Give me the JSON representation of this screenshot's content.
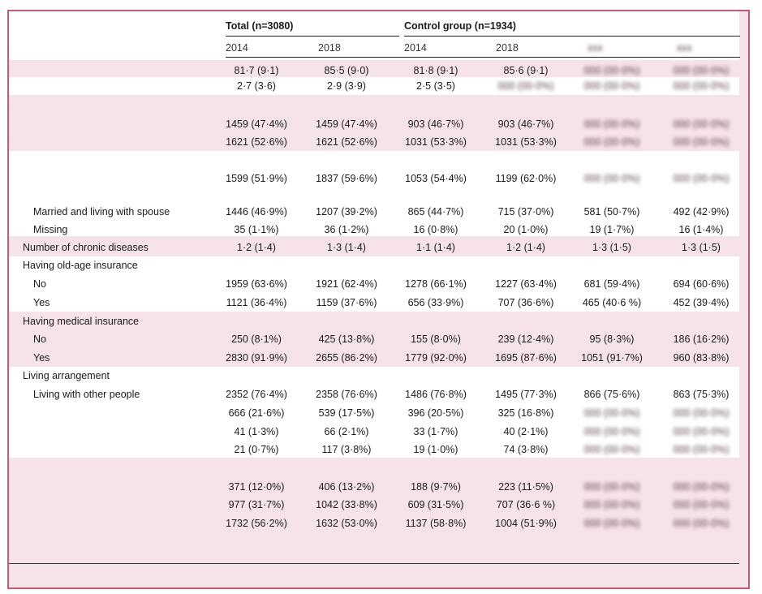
{
  "header": {
    "total": "Total (n=3080)",
    "control": "Control group (n=1934)",
    "years": [
      "2014",
      "2018",
      "2014",
      "2018"
    ]
  },
  "rows": [
    {
      "label": "",
      "indent": 0,
      "v": [
        "81·7 (9·1)",
        "85·5 (9·0)",
        "81·8 (9·1)",
        "85·6 (9·1)",
        "",
        ""
      ]
    },
    {
      "label": "",
      "indent": 0,
      "v": [
        "2·7 (3·6)",
        "2·9 (3·9)",
        "2·5 (3·5)",
        "",
        "",
        ""
      ]
    },
    {
      "label": "",
      "indent": 0,
      "v": [
        "1459 (47·4%)",
        "1459 (47·4%)",
        "903 (46·7%)",
        "903 (46·7%)",
        "",
        ""
      ]
    },
    {
      "label": "",
      "indent": 0,
      "v": [
        "1621 (52·6%)",
        "1621 (52·6%)",
        "1031 (53·3%)",
        "1031 (53·3%)",
        "",
        ""
      ]
    },
    {
      "label": "",
      "indent": 0,
      "v": [
        "1599 (51·9%)",
        "1837 (59·6%)",
        "1053 (54·4%)",
        "1199 (62·0%)",
        "",
        ""
      ]
    },
    {
      "label": "Married and living with spouse",
      "indent": 1,
      "v": [
        "1446 (46·9%)",
        "1207 (39·2%)",
        "865 (44·7%)",
        "715 (37·0%)",
        "581 (50·7%)",
        "492 (42·9%)"
      ]
    },
    {
      "label": "Missing",
      "indent": 1,
      "v": [
        "35 (1·1%)",
        "36 (1·2%)",
        "16 (0·8%)",
        "20 (1·0%)",
        "19 (1·7%)",
        "16 (1·4%)"
      ]
    },
    {
      "label": "Number of chronic diseases",
      "indent": 0,
      "v": [
        "1·2 (1·4)",
        "1·3 (1·4)",
        "1·1 (1·4)",
        "1·2 (1·4)",
        "1·3 (1·5)",
        "1·3 (1·5)"
      ]
    },
    {
      "label": "Having old-age insurance",
      "indent": 0,
      "v": [
        "",
        "",
        "",
        "",
        "",
        ""
      ]
    },
    {
      "label": "No",
      "indent": 1,
      "v": [
        "1959 (63·6%)",
        "1921 (62·4%)",
        "1278 (66·1%)",
        "1227 (63·4%)",
        "681 (59·4%)",
        "694 (60·6%)"
      ]
    },
    {
      "label": "Yes",
      "indent": 1,
      "v": [
        "1121 (36·4%)",
        "1159 (37·6%)",
        "656 (33·9%)",
        "707 (36·6%)",
        "465 (40·6 %)",
        "452 (39·4%)"
      ]
    },
    {
      "label": "Having medical insurance",
      "indent": 0,
      "v": [
        "",
        "",
        "",
        "",
        "",
        ""
      ]
    },
    {
      "label": "No",
      "indent": 1,
      "v": [
        "250 (8·1%)",
        "425 (13·8%)",
        "155 (8·0%)",
        "239 (12·4%)",
        "95 (8·3%)",
        "186 (16·2%)"
      ]
    },
    {
      "label": "Yes",
      "indent": 1,
      "v": [
        "2830 (91·9%)",
        "2655 (86·2%)",
        "1779 (92·0%)",
        "1695 (87·6%)",
        "1051 (91·7%)",
        "960 (83·8%)"
      ]
    },
    {
      "label": "Living arrangement",
      "indent": 0,
      "v": [
        "",
        "",
        "",
        "",
        "",
        ""
      ]
    },
    {
      "label": "Living with other people",
      "indent": 1,
      "v": [
        "2352 (76·4%)",
        "2358 (76·6%)",
        "1486 (76·8%)",
        "1495 (77·3%)",
        "866 (75·6%)",
        "863 (75·3%)"
      ]
    },
    {
      "label": "",
      "indent": 1,
      "v": [
        "666 (21·6%)",
        "539 (17·5%)",
        "396 (20·5%)",
        "325 (16·8%)",
        "",
        ""
      ]
    },
    {
      "label": "",
      "indent": 1,
      "v": [
        "41 (1·3%)",
        "66 (2·1%)",
        "33 (1·7%)",
        "40 (2·1%)",
        "",
        ""
      ]
    },
    {
      "label": "",
      "indent": 1,
      "v": [
        "21 (0·7%)",
        "117 (3·8%)",
        "19 (1·0%)",
        "74 (3·8%)",
        "",
        ""
      ]
    },
    {
      "label": "",
      "indent": 0,
      "v": [
        "371 (12·0%)",
        "406 (13·2%)",
        "188 (9·7%)",
        "223 (11·5%)",
        "",
        ""
      ]
    },
    {
      "label": "",
      "indent": 0,
      "v": [
        "977 (31·7%)",
        "1042 (33·8%)",
        "609 (31·5%)",
        "707 (36·6 %)",
        "",
        ""
      ]
    },
    {
      "label": "",
      "indent": 0,
      "v": [
        "1732 (56·2%)",
        "1632 (53·0%)",
        "1137 (58·8%)",
        "1004 (51·9%)",
        "",
        ""
      ]
    }
  ]
}
